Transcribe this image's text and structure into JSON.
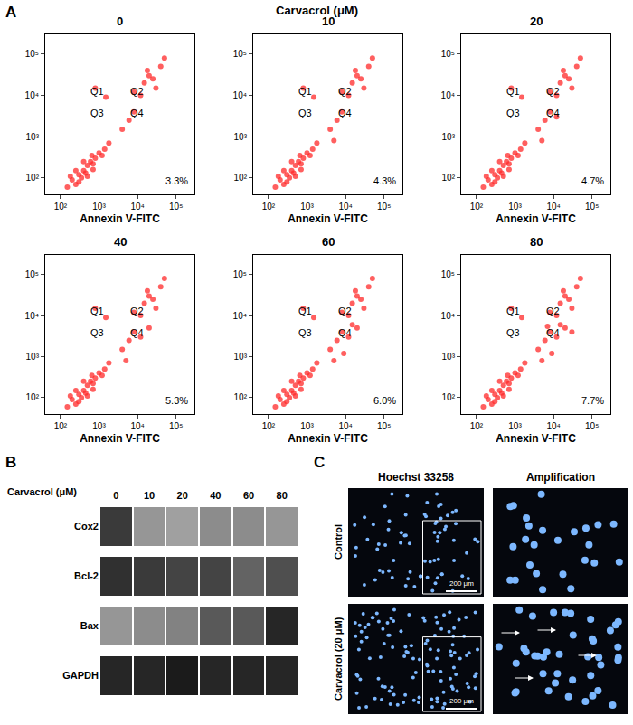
{
  "panel_a": {
    "label": "A",
    "title": "Carvacrol (μM)"
  },
  "panel_b": {
    "label": "B"
  },
  "panel_c": {
    "label": "C",
    "columns": [
      "Hoechst 33258",
      "Amplification"
    ],
    "rows": [
      "Control",
      "Carvacrol (20 μM)"
    ],
    "scale_bar": "200 μm"
  },
  "chart_data": [
    {
      "type": "scatter",
      "title": "0",
      "x_label": "Annexin V-FITC",
      "color": "#ff2a2a",
      "marker": "dot",
      "log": true,
      "grid": false,
      "xlim": [
        40,
        300000
      ],
      "ylim": [
        40,
        300000
      ],
      "xticks": [
        {
          "value": 100,
          "label": "10²"
        },
        {
          "value": 1000,
          "label": "10³"
        },
        {
          "value": 10000,
          "label": "10⁴"
        },
        {
          "value": 100000,
          "label": "10⁵"
        }
      ],
      "yticks": [
        {
          "value": 100,
          "label": "10²"
        },
        {
          "value": 1000,
          "label": "10³"
        },
        {
          "value": 10000,
          "label": "10⁴"
        },
        {
          "value": 100000,
          "label": "10⁵"
        }
      ],
      "gate": {
        "x": 3000,
        "y": 7000
      },
      "quadrants": [
        "Q1",
        "Q2",
        "Q3",
        "Q4"
      ],
      "annotations": [
        "3.3%"
      ],
      "x": [
        150,
        200,
        250,
        300,
        350,
        400,
        450,
        500,
        600,
        700,
        800,
        1000,
        1200,
        1400,
        300,
        500,
        700,
        250,
        400,
        650,
        1800,
        180,
        8000,
        15000,
        20000,
        25000,
        40000,
        12000,
        30000,
        50000,
        18000,
        1500,
        800,
        4000,
        6000,
        8000
      ],
      "y": [
        60,
        90,
        70,
        120,
        100,
        150,
        130,
        200,
        250,
        220,
        300,
        400,
        350,
        500,
        80,
        110,
        160,
        150,
        250,
        350,
        700,
        110,
        12000,
        20000,
        30000,
        25000,
        50000,
        10000,
        15000,
        80000,
        40000,
        9000,
        15000,
        1500,
        2500,
        4000
      ]
    },
    {
      "type": "scatter",
      "title": "10",
      "x_label": "Annexin V-FITC",
      "color": "#ff2a2a",
      "marker": "dot",
      "log": true,
      "grid": false,
      "xlim": [
        40,
        300000
      ],
      "ylim": [
        40,
        300000
      ],
      "xticks": [
        {
          "value": 100,
          "label": "10²"
        },
        {
          "value": 1000,
          "label": "10³"
        },
        {
          "value": 10000,
          "label": "10⁴"
        },
        {
          "value": 100000,
          "label": "10⁵"
        }
      ],
      "yticks": [
        {
          "value": 100,
          "label": "10²"
        },
        {
          "value": 1000,
          "label": "10³"
        },
        {
          "value": 10000,
          "label": "10⁴"
        },
        {
          "value": 100000,
          "label": "10⁵"
        }
      ],
      "gate": {
        "x": 3000,
        "y": 7000
      },
      "quadrants": [
        "Q1",
        "Q2",
        "Q3",
        "Q4"
      ],
      "annotations": [
        "4.3%"
      ],
      "x": [
        150,
        200,
        250,
        300,
        350,
        400,
        450,
        500,
        600,
        700,
        800,
        1000,
        1200,
        1400,
        300,
        500,
        700,
        250,
        400,
        650,
        1800,
        180,
        8000,
        15000,
        20000,
        25000,
        40000,
        12000,
        30000,
        50000,
        18000,
        1500,
        800,
        4000,
        6000,
        8000,
        5000
      ],
      "y": [
        60,
        90,
        70,
        120,
        100,
        150,
        130,
        200,
        250,
        220,
        300,
        400,
        350,
        500,
        80,
        110,
        160,
        150,
        250,
        350,
        700,
        110,
        12000,
        20000,
        30000,
        25000,
        50000,
        10000,
        15000,
        80000,
        40000,
        9000,
        15000,
        1500,
        2500,
        4000,
        800
      ]
    },
    {
      "type": "scatter",
      "title": "20",
      "x_label": "Annexin V-FITC",
      "color": "#ff2a2a",
      "marker": "dot",
      "log": true,
      "grid": false,
      "xlim": [
        40,
        300000
      ],
      "ylim": [
        40,
        300000
      ],
      "xticks": [
        {
          "value": 100,
          "label": "10²"
        },
        {
          "value": 1000,
          "label": "10³"
        },
        {
          "value": 10000,
          "label": "10⁴"
        },
        {
          "value": 100000,
          "label": "10⁵"
        }
      ],
      "yticks": [
        {
          "value": 100,
          "label": "10²"
        },
        {
          "value": 1000,
          "label": "10³"
        },
        {
          "value": 10000,
          "label": "10⁴"
        },
        {
          "value": 100000,
          "label": "10⁵"
        }
      ],
      "gate": {
        "x": 3000,
        "y": 7000
      },
      "quadrants": [
        "Q1",
        "Q2",
        "Q3",
        "Q4"
      ],
      "annotations": [
        "4.7%"
      ],
      "x": [
        150,
        200,
        250,
        300,
        350,
        400,
        450,
        500,
        600,
        700,
        800,
        1000,
        1200,
        1400,
        300,
        500,
        700,
        250,
        400,
        650,
        1800,
        180,
        8000,
        15000,
        20000,
        25000,
        40000,
        12000,
        30000,
        50000,
        18000,
        1500,
        800,
        4000,
        6000,
        8000,
        5000,
        12000
      ],
      "y": [
        60,
        90,
        70,
        120,
        100,
        150,
        130,
        200,
        250,
        220,
        300,
        400,
        350,
        500,
        80,
        110,
        160,
        150,
        250,
        350,
        700,
        110,
        12000,
        20000,
        30000,
        25000,
        50000,
        10000,
        15000,
        80000,
        40000,
        9000,
        15000,
        1500,
        2500,
        4000,
        800,
        3000
      ]
    },
    {
      "type": "scatter",
      "title": "40",
      "x_label": "Annexin V-FITC",
      "color": "#ff2a2a",
      "marker": "dot",
      "log": true,
      "grid": false,
      "xlim": [
        40,
        300000
      ],
      "ylim": [
        40,
        300000
      ],
      "xticks": [
        {
          "value": 100,
          "label": "10²"
        },
        {
          "value": 1000,
          "label": "10³"
        },
        {
          "value": 10000,
          "label": "10⁴"
        },
        {
          "value": 100000,
          "label": "10⁵"
        }
      ],
      "yticks": [
        {
          "value": 100,
          "label": "10²"
        },
        {
          "value": 1000,
          "label": "10³"
        },
        {
          "value": 10000,
          "label": "10⁴"
        },
        {
          "value": 100000,
          "label": "10⁵"
        }
      ],
      "gate": {
        "x": 3000,
        "y": 7000
      },
      "quadrants": [
        "Q1",
        "Q2",
        "Q3",
        "Q4"
      ],
      "annotations": [
        "5.3%"
      ],
      "x": [
        150,
        200,
        250,
        300,
        350,
        400,
        450,
        500,
        600,
        700,
        800,
        1000,
        1200,
        1400,
        300,
        500,
        700,
        250,
        400,
        650,
        1800,
        180,
        8000,
        15000,
        20000,
        25000,
        40000,
        12000,
        30000,
        50000,
        18000,
        1500,
        800,
        4000,
        6000,
        8000,
        5000,
        12000,
        20000
      ],
      "y": [
        60,
        90,
        70,
        120,
        100,
        150,
        130,
        200,
        250,
        220,
        300,
        400,
        350,
        500,
        80,
        110,
        160,
        150,
        250,
        350,
        700,
        110,
        12000,
        20000,
        30000,
        25000,
        50000,
        10000,
        15000,
        80000,
        40000,
        9000,
        15000,
        1500,
        2500,
        4000,
        800,
        3000,
        5000
      ]
    },
    {
      "type": "scatter",
      "title": "60",
      "x_label": "Annexin V-FITC",
      "color": "#ff2a2a",
      "marker": "dot",
      "log": true,
      "grid": false,
      "xlim": [
        40,
        300000
      ],
      "ylim": [
        40,
        300000
      ],
      "xticks": [
        {
          "value": 100,
          "label": "10²"
        },
        {
          "value": 1000,
          "label": "10³"
        },
        {
          "value": 10000,
          "label": "10⁴"
        },
        {
          "value": 100000,
          "label": "10⁵"
        }
      ],
      "yticks": [
        {
          "value": 100,
          "label": "10²"
        },
        {
          "value": 1000,
          "label": "10³"
        },
        {
          "value": 10000,
          "label": "10⁴"
        },
        {
          "value": 100000,
          "label": "10⁵"
        }
      ],
      "gate": {
        "x": 3000,
        "y": 7000
      },
      "quadrants": [
        "Q1",
        "Q2",
        "Q3",
        "Q4"
      ],
      "annotations": [
        "6.0%"
      ],
      "x": [
        150,
        200,
        250,
        300,
        350,
        400,
        450,
        500,
        600,
        700,
        800,
        1000,
        1200,
        1400,
        300,
        500,
        700,
        250,
        400,
        650,
        1800,
        180,
        8000,
        15000,
        20000,
        25000,
        40000,
        12000,
        30000,
        50000,
        18000,
        1500,
        800,
        4000,
        6000,
        8000,
        5000,
        12000,
        20000,
        9000,
        15000
      ],
      "y": [
        60,
        90,
        70,
        120,
        100,
        150,
        130,
        200,
        250,
        220,
        300,
        400,
        350,
        500,
        80,
        110,
        160,
        150,
        250,
        350,
        700,
        110,
        12000,
        20000,
        30000,
        25000,
        50000,
        10000,
        15000,
        80000,
        40000,
        9000,
        15000,
        1500,
        2500,
        4000,
        800,
        3000,
        5000,
        1200,
        6000
      ]
    },
    {
      "type": "scatter",
      "title": "80",
      "x_label": "Annexin V-FITC",
      "color": "#ff2a2a",
      "marker": "dot",
      "log": true,
      "grid": false,
      "xlim": [
        40,
        300000
      ],
      "ylim": [
        40,
        300000
      ],
      "xticks": [
        {
          "value": 100,
          "label": "10²"
        },
        {
          "value": 1000,
          "label": "10³"
        },
        {
          "value": 10000,
          "label": "10⁴"
        },
        {
          "value": 100000,
          "label": "10⁵"
        }
      ],
      "yticks": [
        {
          "value": 100,
          "label": "10²"
        },
        {
          "value": 1000,
          "label": "10³"
        },
        {
          "value": 10000,
          "label": "10⁴"
        },
        {
          "value": 100000,
          "label": "10⁵"
        }
      ],
      "gate": {
        "x": 3000,
        "y": 7000
      },
      "quadrants": [
        "Q1",
        "Q2",
        "Q3",
        "Q4"
      ],
      "annotations": [
        "7.7%"
      ],
      "x": [
        150,
        200,
        250,
        300,
        350,
        400,
        450,
        500,
        600,
        700,
        800,
        1000,
        1200,
        1400,
        300,
        500,
        700,
        250,
        400,
        650,
        1800,
        180,
        8000,
        15000,
        20000,
        25000,
        40000,
        12000,
        30000,
        50000,
        18000,
        1500,
        800,
        4000,
        6000,
        8000,
        5000,
        12000,
        20000,
        9000,
        15000,
        30000,
        7000
      ],
      "y": [
        60,
        90,
        70,
        120,
        100,
        150,
        130,
        200,
        250,
        220,
        300,
        400,
        350,
        500,
        80,
        110,
        160,
        150,
        250,
        350,
        700,
        110,
        12000,
        20000,
        30000,
        25000,
        50000,
        10000,
        15000,
        80000,
        40000,
        9000,
        15000,
        1500,
        2500,
        4000,
        800,
        3000,
        5000,
        1200,
        6000,
        4000,
        5500
      ]
    },
    {
      "type": "blot",
      "x_label": "Carvacrol (μM)",
      "categories": [
        "0",
        "10",
        "20",
        "40",
        "60",
        "80"
      ],
      "rows": [
        "Cox2",
        "Bcl-2",
        "Bax",
        "GAPDH"
      ],
      "intensity": [
        [
          0.8,
          0.35,
          0.3,
          0.4,
          0.4,
          0.35
        ],
        [
          0.85,
          0.8,
          0.75,
          0.75,
          0.6,
          0.7
        ],
        [
          0.35,
          0.4,
          0.45,
          0.65,
          0.65,
          0.9
        ],
        [
          0.9,
          0.9,
          0.95,
          0.9,
          0.9,
          0.9
        ]
      ],
      "intensity_range": [
        0,
        1
      ]
    }
  ]
}
